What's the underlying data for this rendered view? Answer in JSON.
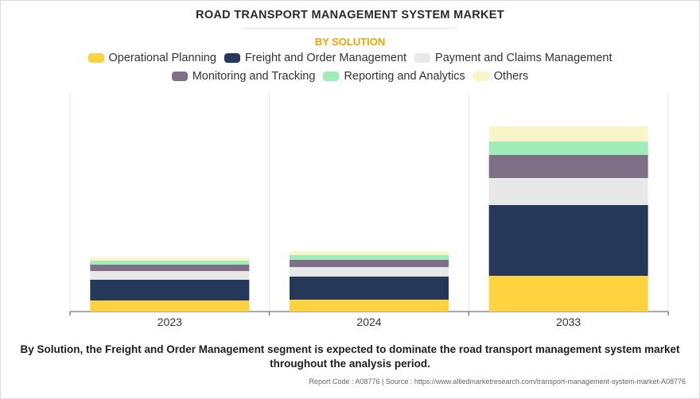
{
  "chart_data": {
    "type": "bar",
    "stacked": true,
    "title": "ROAD TRANSPORT MANAGEMENT SYSTEM MARKET",
    "subtitle": "BY SOLUTION",
    "categories": [
      "2023",
      "2024",
      "2033"
    ],
    "series": [
      {
        "name": "Operational Planning",
        "color": "#ffd23f",
        "values": [
          14,
          15,
          45
        ]
      },
      {
        "name": "Freight and Order Management",
        "color": "#263859",
        "values": [
          26,
          29,
          89
        ]
      },
      {
        "name": "Payment and Claims Management",
        "color": "#e8e8e8",
        "values": [
          11,
          12,
          34
        ]
      },
      {
        "name": "Monitoring and Tracking",
        "color": "#7f6f86",
        "values": [
          8,
          9,
          29
        ]
      },
      {
        "name": "Reporting and Analytics",
        "color": "#a0ecb8",
        "values": [
          5,
          6,
          17
        ]
      },
      {
        "name": "Others",
        "color": "#f8f6c8",
        "values": [
          4,
          5,
          19
        ]
      }
    ],
    "ylim": [
      0,
      275
    ],
    "grid": "vertical separators",
    "legend": "top-center",
    "xlabel": "",
    "ylabel": ""
  },
  "caption": "By Solution, the Freight and Order Management segment is expected to dominate the road transport management system market throughout the analysis period.",
  "source": "Report Code : A08776  |  Source : https://www.alliedmarketresearch.com/transport-management-system-market-A08776"
}
